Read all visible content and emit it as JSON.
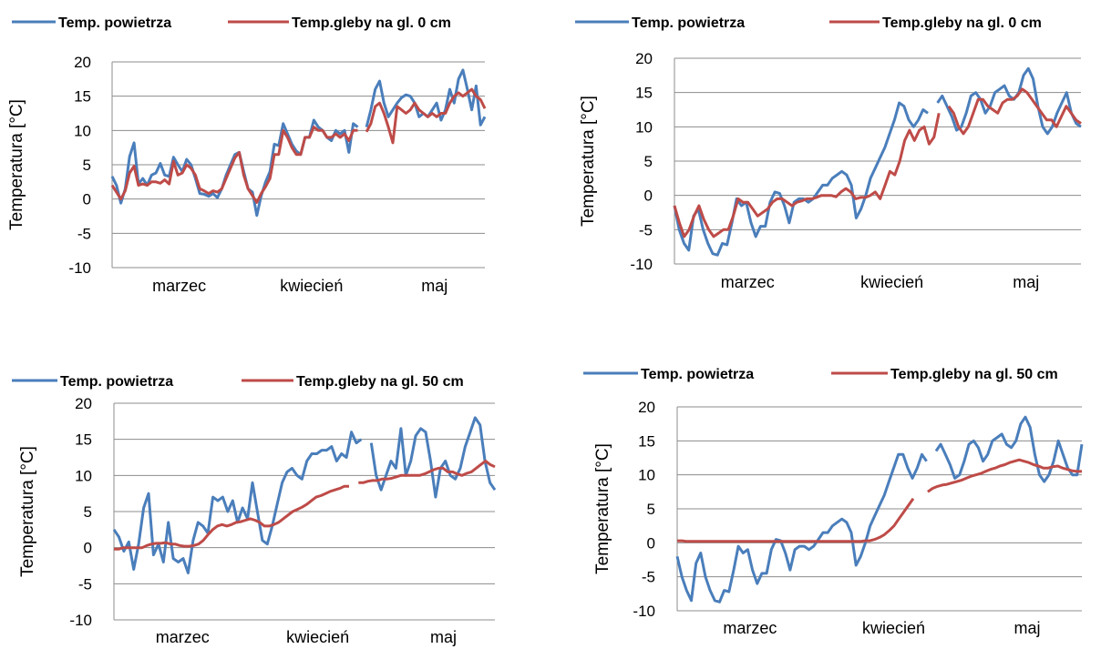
{
  "chart_data": [
    {
      "type": "line",
      "panel": "top-left",
      "xlabel": "",
      "ylabel": "Temperatura [°C]",
      "ylim": [
        -10,
        20
      ],
      "yticks": [
        -10,
        -5,
        0,
        5,
        10,
        15,
        20
      ],
      "months": [
        "marzec",
        "kwiecień",
        "maj"
      ],
      "grid": true,
      "legend": "top",
      "series": [
        {
          "name": "Temp. powietrza",
          "color": "#4a7ebb",
          "values": [
            3.3,
            2.0,
            -0.6,
            1.5,
            6.2,
            8.2,
            2.2,
            3.0,
            2.0,
            3.5,
            3.8,
            5.2,
            3.5,
            3.3,
            6.1,
            5.0,
            4.0,
            5.8,
            5.0,
            3.0,
            0.8,
            0.7,
            0.4,
            0.8,
            0.2,
            1.5,
            3.5,
            5.0,
            6.5,
            6.8,
            4.0,
            1.5,
            1.0,
            -2.4,
            0.5,
            2.5,
            4.0,
            8.0,
            7.8,
            11.0,
            9.5,
            8.0,
            7.0,
            6.5,
            9.0,
            9.0,
            11.5,
            10.5,
            10.0,
            9.0,
            8.5,
            10.0,
            9.5,
            10.0,
            6.8,
            11.0,
            10.5,
            null,
            10.5,
            13.0,
            16.0,
            17.2,
            14.0,
            12.0,
            13.0,
            14.0,
            14.8,
            15.2,
            15.0,
            14.0,
            12.0,
            12.5,
            12.0,
            13.0,
            14.0,
            11.5,
            13.0,
            16.0,
            14.0,
            17.5,
            18.8,
            16.0,
            13.0,
            16.5,
            10.8,
            12.0
          ]
        },
        {
          "name": "Temp.gleby na gl. 0 cm",
          "color": "#be4b48",
          "values": [
            2.0,
            1.0,
            0.0,
            1.2,
            3.8,
            4.8,
            2.0,
            2.2,
            2.0,
            2.5,
            2.5,
            2.3,
            2.8,
            2.2,
            5.5,
            3.5,
            3.8,
            5.0,
            4.5,
            3.5,
            1.5,
            1.2,
            0.8,
            1.2,
            1.0,
            1.5,
            3.0,
            4.5,
            6.0,
            6.8,
            3.5,
            1.5,
            0.5,
            -0.5,
            0.8,
            1.8,
            3.0,
            6.5,
            6.5,
            10.0,
            9.0,
            7.5,
            6.5,
            6.5,
            9.0,
            9.0,
            10.5,
            10.0,
            10.0,
            9.0,
            9.0,
            9.5,
            9.0,
            9.5,
            8.5,
            10.0,
            10.0,
            null,
            9.8,
            11.0,
            13.5,
            14.0,
            12.5,
            10.5,
            8.2,
            13.5,
            13.0,
            12.5,
            13.0,
            14.0,
            13.0,
            12.5,
            12.0,
            12.5,
            12.0,
            12.5,
            12.5,
            14.0,
            15.0,
            15.5,
            15.0,
            15.5,
            16.0,
            15.0,
            14.5,
            13.2
          ]
        }
      ]
    },
    {
      "type": "line",
      "panel": "top-right",
      "xlabel": "",
      "ylabel": "Temperatura [°C]",
      "ylim": [
        -10,
        20
      ],
      "yticks": [
        -10,
        -5,
        0,
        5,
        10,
        15,
        20
      ],
      "months": [
        "marzec",
        "kwiecień",
        "maj"
      ],
      "grid": true,
      "legend": "top",
      "series": [
        {
          "name": "Temp. powietrza",
          "color": "#4a7ebb",
          "values": [
            -1.5,
            -5.0,
            -7.0,
            -8.0,
            -3.0,
            -2.0,
            -5.0,
            -7.0,
            -8.5,
            -8.7,
            -7.0,
            -7.2,
            -4.0,
            -0.5,
            -1.5,
            -1.0,
            -4.0,
            -6.0,
            -4.5,
            -4.5,
            -1.0,
            0.5,
            0.3,
            -1.5,
            -4.0,
            -1.0,
            -0.5,
            -0.5,
            -1.0,
            -0.5,
            0.5,
            1.5,
            1.5,
            2.5,
            3.0,
            3.5,
            3.0,
            1.5,
            -3.3,
            -2.0,
            0.0,
            2.5,
            4.0,
            5.5,
            7.0,
            9.0,
            11.0,
            13.5,
            13.0,
            11.0,
            10.0,
            11.0,
            12.5,
            12.0,
            null,
            13.5,
            14.5,
            13.0,
            11.5,
            9.5,
            10.0,
            12.0,
            14.5,
            15.0,
            14.0,
            12.0,
            13.0,
            15.0,
            15.5,
            16.0,
            14.5,
            14.0,
            15.0,
            17.5,
            18.5,
            17.0,
            13.0,
            10.0,
            9.0,
            10.0,
            12.0,
            13.5,
            15.0,
            12.0,
            10.5,
            10.0
          ]
        },
        {
          "name": "Temp.gleby na gl. 0 cm",
          "color": "#be4b48",
          "values": [
            -1.5,
            -4.0,
            -6.0,
            -5.0,
            -3.0,
            -1.5,
            -3.5,
            -5.0,
            -6.0,
            -5.5,
            -5.0,
            -5.0,
            -3.0,
            -0.5,
            -1.0,
            -1.0,
            -2.0,
            -3.0,
            -2.5,
            -2.0,
            -1.0,
            -0.5,
            -0.5,
            -1.0,
            -1.5,
            -1.0,
            -0.8,
            -0.5,
            -0.5,
            -0.3,
            0.0,
            0.0,
            0.0,
            -0.2,
            0.5,
            1.0,
            0.5,
            -0.5,
            -0.3,
            -0.3,
            0.0,
            0.5,
            -0.5,
            1.5,
            3.5,
            3.0,
            5.0,
            8.0,
            9.5,
            8.0,
            9.5,
            10.0,
            7.5,
            8.5,
            12.0,
            null,
            13.0,
            12.0,
            10.0,
            9.0,
            10.0,
            12.0,
            14.0,
            14.0,
            13.0,
            12.5,
            12.0,
            13.5,
            14.0,
            14.0,
            14.5,
            15.5,
            15.0,
            14.0,
            13.0,
            12.0,
            11.0,
            11.0,
            10.0,
            11.5,
            13.0,
            12.0,
            11.0,
            10.5
          ]
        }
      ]
    },
    {
      "type": "line",
      "panel": "bottom-left",
      "xlabel": "",
      "ylabel": "Temperatura [°C]",
      "ylim": [
        -10,
        20
      ],
      "yticks": [
        -10,
        -5,
        0,
        5,
        10,
        15,
        20
      ],
      "months": [
        "marzec",
        "kwiecień",
        "maj"
      ],
      "grid": true,
      "legend": "top",
      "series": [
        {
          "name": "Temp. powietrza",
          "color": "#4a7ebb",
          "values": [
            2.5,
            1.5,
            -0.5,
            0.8,
            -3.0,
            0.5,
            5.5,
            7.5,
            -1.0,
            0.5,
            -2.0,
            3.5,
            -1.5,
            -2.0,
            -1.5,
            -3.5,
            1.0,
            3.5,
            3.0,
            2.0,
            7.0,
            6.5,
            7.0,
            5.0,
            6.5,
            3.5,
            5.5,
            4.0,
            9.0,
            5.0,
            1.0,
            0.5,
            3.0,
            6.0,
            9.0,
            10.5,
            11.0,
            10.0,
            9.5,
            12.0,
            13.0,
            13.0,
            13.5,
            13.5,
            14.0,
            12.0,
            13.0,
            12.5,
            16.0,
            14.5,
            15.0,
            null,
            14.5,
            10.0,
            8.0,
            10.0,
            12.0,
            11.0,
            16.5,
            10.0,
            12.0,
            15.5,
            16.5,
            16.0,
            12.0,
            7.0,
            11.0,
            12.0,
            10.0,
            9.5,
            11.0,
            14.0,
            16.0,
            18.0,
            17.0,
            12.0,
            9.0,
            8.0
          ]
        },
        {
          "name": "Temp.gleby na gl. 50 cm",
          "color": "#be4b48",
          "values": [
            -0.2,
            -0.2,
            0.0,
            0.0,
            0.0,
            0.0,
            0.0,
            0.3,
            0.5,
            0.6,
            0.6,
            0.7,
            0.5,
            0.5,
            0.3,
            0.2,
            0.2,
            0.3,
            0.5,
            1.0,
            1.8,
            2.5,
            3.0,
            3.2,
            3.0,
            3.2,
            3.5,
            3.6,
            3.8,
            4.0,
            3.8,
            3.5,
            3.0,
            3.0,
            3.2,
            3.5,
            4.0,
            4.5,
            5.0,
            5.3,
            5.6,
            6.0,
            6.5,
            7.0,
            7.2,
            7.5,
            7.8,
            8.0,
            8.2,
            8.5,
            8.5,
            null,
            9.0,
            9.0,
            9.2,
            9.3,
            9.3,
            9.5,
            9.5,
            9.6,
            9.8,
            10.0,
            10.0,
            10.0,
            10.0,
            10.0,
            10.2,
            10.5,
            10.8,
            11.0,
            11.0,
            10.5,
            10.5,
            10.2,
            10.0,
            10.3,
            10.5,
            11.0,
            11.5,
            12.0,
            11.5,
            11.2
          ]
        }
      ]
    },
    {
      "type": "line",
      "panel": "bottom-right",
      "xlabel": "",
      "ylabel": "Temperatura [°C]",
      "ylim": [
        -10,
        20
      ],
      "yticks": [
        -10,
        -5,
        0,
        5,
        10,
        15,
        20
      ],
      "months": [
        "marzec",
        "kwiecień",
        "maj"
      ],
      "grid": true,
      "legend": "top",
      "series": [
        {
          "name": "Temp. powietrza",
          "color": "#4a7ebb",
          "values": [
            -2.0,
            -5.0,
            -7.0,
            -8.5,
            -3.0,
            -1.5,
            -5.0,
            -7.0,
            -8.5,
            -8.7,
            -7.0,
            -7.2,
            -4.0,
            -0.5,
            -1.5,
            -1.0,
            -4.0,
            -6.0,
            -4.5,
            -4.5,
            -1.0,
            0.5,
            0.3,
            -1.5,
            -4.0,
            -1.0,
            -0.5,
            -0.5,
            -1.0,
            -0.5,
            0.5,
            1.5,
            1.5,
            2.5,
            3.0,
            3.5,
            3.0,
            1.5,
            -3.3,
            -2.0,
            0.0,
            2.5,
            4.0,
            5.5,
            7.0,
            9.0,
            11.0,
            13.0,
            13.0,
            11.0,
            9.5,
            11.0,
            13.0,
            12.0,
            null,
            13.5,
            14.5,
            13.0,
            11.5,
            9.5,
            10.0,
            12.0,
            14.5,
            15.0,
            14.0,
            12.0,
            13.0,
            15.0,
            15.5,
            16.0,
            14.5,
            14.0,
            15.0,
            17.5,
            18.5,
            17.0,
            13.0,
            10.0,
            9.0,
            10.0,
            12.0,
            15.0,
            13.0,
            11.0,
            10.0,
            10.0,
            14.5
          ]
        },
        {
          "name": "Temp.gleby na gl. 50 cm",
          "color": "#be4b48",
          "values": [
            0.3,
            0.3,
            0.2,
            0.2,
            0.2,
            0.2,
            0.2,
            0.2,
            0.2,
            0.2,
            0.2,
            0.2,
            0.2,
            0.2,
            0.2,
            0.2,
            0.2,
            0.2,
            0.2,
            0.2,
            0.2,
            0.2,
            0.2,
            0.2,
            0.2,
            0.2,
            0.2,
            0.2,
            0.2,
            0.2,
            0.2,
            0.2,
            0.2,
            0.2,
            0.2,
            0.2,
            0.2,
            0.2,
            0.2,
            0.3,
            0.3,
            0.5,
            0.8,
            1.2,
            1.8,
            2.5,
            3.5,
            4.5,
            5.5,
            6.5,
            null,
            null,
            7.5,
            8.0,
            8.3,
            8.5,
            8.6,
            8.8,
            9.0,
            9.2,
            9.5,
            9.8,
            10.0,
            10.2,
            10.5,
            10.8,
            11.0,
            11.3,
            11.5,
            11.8,
            12.0,
            12.2,
            12.0,
            11.8,
            11.5,
            11.3,
            11.0,
            11.0,
            11.2,
            11.3,
            11.0,
            10.8,
            10.6,
            10.5,
            10.5
          ]
        }
      ]
    }
  ]
}
